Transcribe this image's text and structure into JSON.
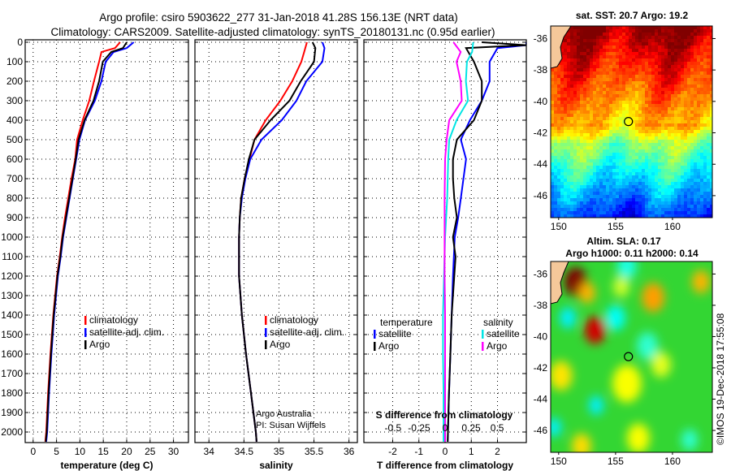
{
  "title": {
    "line1": "Argo profile: csiro 5903622_277 31-Jan-2018 41.28S 156.13E (NRT data)",
    "line2": "Climatology: CARS2009. Satellite-adjusted climatology: synTS_20180131.nc (0.95d earlier)"
  },
  "colors": {
    "climatology": "#ff0000",
    "satellite": "#0000ff",
    "argo": "#000000",
    "s_satellite": "#00e5e5",
    "s_argo": "#ff00ff"
  },
  "credit": {
    "line1": "Argo Australia",
    "line2": "PI: Susan Wijffels"
  },
  "timestamp": "©IMOS 19-Dec-2018 17:55:08",
  "chart_data": [
    {
      "type": "line",
      "name": "temperature",
      "xlabel": "temperature (deg C)",
      "ylabel": "depth",
      "xlim": [
        -1.7,
        33.2
      ],
      "ylim": [
        2096,
        -12
      ],
      "xticks": [
        "0",
        "5",
        "10",
        "15",
        "20",
        "25",
        "30"
      ],
      "yticks": [
        "0",
        "100",
        "200",
        "300",
        "400",
        "500",
        "600",
        "700",
        "800",
        "900",
        "1000",
        "1100",
        "1200",
        "1300",
        "1400",
        "1500",
        "1600",
        "1700",
        "1800",
        "1900",
        "2000"
      ],
      "grid": true,
      "legend": [
        "climatology",
        "satellite-adj. clim.",
        "Argo"
      ],
      "series": [
        {
          "name": "climatology",
          "color": "#ff0000",
          "depth": [
            0,
            30,
            50,
            100,
            200,
            300,
            400,
            500,
            600,
            700,
            800,
            900,
            1000,
            1100,
            1200,
            1400,
            1600,
            1800,
            2000,
            2050
          ],
          "values": [
            18.6,
            17.5,
            14.6,
            14.1,
            13.0,
            12.0,
            10.6,
            9.4,
            9.0,
            8.2,
            7.5,
            6.8,
            6.2,
            5.7,
            5.1,
            4.3,
            3.7,
            3.2,
            2.8,
            2.6
          ]
        },
        {
          "name": "satellite-adj. clim.",
          "color": "#0000ff",
          "depth": [
            0,
            30,
            50,
            100,
            200,
            300,
            400,
            500,
            600,
            700,
            800,
            900,
            1000,
            1100,
            1200,
            1400,
            1600,
            1800,
            2000,
            2050
          ],
          "values": [
            21.5,
            20.0,
            17.2,
            15.5,
            14.6,
            13.2,
            11.1,
            9.9,
            9.2,
            8.5,
            7.8,
            7.1,
            6.4,
            5.9,
            5.3,
            4.5,
            3.9,
            3.4,
            3.0,
            2.8
          ]
        },
        {
          "name": "Argo",
          "color": "#000000",
          "depth": [
            0,
            30,
            50,
            100,
            200,
            300,
            400,
            500,
            600,
            700,
            800,
            900,
            1000,
            1100,
            1200,
            1400,
            1600,
            1800,
            2000,
            2050
          ],
          "values": [
            20.0,
            19.2,
            16.7,
            14.9,
            14.1,
            12.9,
            11.0,
            9.7,
            9.1,
            8.4,
            7.7,
            7.0,
            6.3,
            5.8,
            5.2,
            4.4,
            3.8,
            3.3,
            2.9,
            2.7
          ]
        }
      ]
    },
    {
      "type": "line",
      "name": "salinity",
      "xlabel": "salinity",
      "xlim": [
        33.8,
        36.12
      ],
      "ylim": [
        2096,
        -12
      ],
      "xticks": [
        "34",
        "34.5",
        "35",
        "35.5",
        "36"
      ],
      "grid": true,
      "legend": [
        "climatology",
        "satellite-adj. clim.",
        "Argo"
      ],
      "series": [
        {
          "name": "climatology",
          "color": "#ff0000",
          "depth": [
            0,
            50,
            100,
            200,
            300,
            400,
            500,
            600,
            700,
            800,
            900,
            1000,
            1200,
            1400,
            1600,
            1800,
            2000,
            2050
          ],
          "values": [
            35.4,
            35.36,
            35.32,
            35.19,
            35.02,
            34.81,
            34.65,
            34.58,
            34.51,
            34.46,
            34.44,
            34.43,
            34.43,
            34.47,
            34.53,
            34.6,
            34.67,
            34.68
          ]
        },
        {
          "name": "satellite-adj. clim.",
          "color": "#0000ff",
          "depth": [
            0,
            30,
            100,
            200,
            300,
            400,
            500,
            600,
            700,
            800,
            900,
            1000,
            1200,
            1400,
            1600,
            1800,
            2000,
            2050
          ],
          "values": [
            35.62,
            35.65,
            35.62,
            35.39,
            35.25,
            35.04,
            34.75,
            34.59,
            34.52,
            34.47,
            34.44,
            34.43,
            34.43,
            34.47,
            34.53,
            34.6,
            34.67,
            34.68
          ]
        },
        {
          "name": "Argo",
          "color": "#000000",
          "depth": [
            0,
            30,
            100,
            200,
            300,
            400,
            500,
            600,
            700,
            800,
            900,
            1000,
            1200,
            1400,
            1600,
            1800,
            2000,
            2050
          ],
          "values": [
            35.48,
            35.52,
            35.5,
            35.31,
            35.15,
            34.88,
            34.65,
            34.57,
            34.51,
            34.46,
            34.44,
            34.43,
            34.43,
            34.47,
            34.53,
            34.6,
            34.67,
            34.68
          ]
        }
      ]
    },
    {
      "type": "line",
      "name": "difference-from-climatology",
      "xlabel": "T difference from climatology",
      "x2label": "S difference from climatology",
      "xlim": [
        -3.1,
        3.1
      ],
      "x2lim": [
        -0.78,
        0.78
      ],
      "ylim": [
        2096,
        -12
      ],
      "xticks": [
        "-2",
        "-1",
        "0",
        "1",
        "2"
      ],
      "x2ticks": [
        "-0.5",
        "-0.25",
        "0",
        "0.25",
        "0.5"
      ],
      "grid": true,
      "legend_temperature": {
        "title": "temperature",
        "items": [
          "satellite",
          "Argo"
        ]
      },
      "legend_salinity": {
        "title": "salinity",
        "items": [
          "satellite",
          "Argo"
        ]
      },
      "series": [
        {
          "name": "T satellite",
          "axis": "T",
          "color": "#0000ff",
          "depth": [
            0,
            15,
            30,
            100,
            200,
            300,
            400,
            500,
            600,
            700,
            800,
            900,
            1000,
            1200,
            1400,
            1600,
            1800,
            2050
          ],
          "values": [
            3.1,
            3.1,
            2.0,
            1.7,
            1.7,
            1.4,
            0.95,
            0.6,
            0.8,
            0.7,
            0.6,
            0.5,
            0.37,
            0.3,
            0.25,
            0.2,
            0.15,
            0.1
          ]
        },
        {
          "name": "T Argo",
          "axis": "T",
          "color": "#000000",
          "depth": [
            0,
            15,
            30,
            100,
            200,
            300,
            400,
            500,
            600,
            700,
            800,
            900,
            1000,
            1100,
            1200,
            1400,
            1600,
            1800,
            2050
          ],
          "values": [
            1.4,
            3.1,
            0.8,
            1.1,
            1.4,
            1.4,
            1.1,
            0.45,
            0.3,
            0.3,
            0.35,
            0.45,
            0.3,
            0.4,
            0.35,
            0.25,
            0.2,
            0.15,
            0.1
          ]
        },
        {
          "name": "S satellite",
          "axis": "S",
          "color": "#00e5e5",
          "depth": [
            0,
            50,
            100,
            200,
            300,
            400,
            500,
            600,
            800,
            1000,
            1200,
            1400,
            1600,
            1800,
            2050
          ],
          "values": [
            0.27,
            0.26,
            0.21,
            0.2,
            0.22,
            0.11,
            0.04,
            0.03,
            0.02,
            0.0,
            -0.01,
            -0.02,
            -0.02,
            -0.015,
            -0.015
          ]
        },
        {
          "name": "S Argo",
          "axis": "S",
          "color": "#ff00ff",
          "depth": [
            0,
            50,
            100,
            200,
            300,
            400,
            500,
            600,
            800,
            1000,
            1200,
            1400,
            1600,
            1800,
            2050
          ],
          "values": [
            0.08,
            0.15,
            0.11,
            0.15,
            0.16,
            0.04,
            0.015,
            0.0,
            -0.005,
            -0.005,
            -0.005,
            0.0,
            0.0,
            0.0,
            0.0
          ]
        }
      ]
    },
    {
      "type": "heatmap",
      "name": "sst-map",
      "title": "sat. SST: 20.7 Argo: 19.2",
      "xlim": [
        149.3,
        163.5
      ],
      "ylim": [
        -47.4,
        -35.2
      ],
      "xticks": [
        "150",
        "155",
        "160"
      ],
      "yticks": [
        "-36",
        "-38",
        "-40",
        "-42",
        "-44",
        "-46"
      ],
      "marker": {
        "lon": 156.13,
        "lat": -41.28
      }
    },
    {
      "type": "heatmap",
      "name": "sla-map",
      "title1": "Altim. SLA: 0.17",
      "title2": "Argo h1000: 0.11 h2000: 0.14",
      "xlim": [
        149.3,
        163.5
      ],
      "ylim": [
        -47.4,
        -35.2
      ],
      "xticks": [
        "150",
        "155",
        "160"
      ],
      "yticks": [
        "-36",
        "-38",
        "-40",
        "-42",
        "-44",
        "-46"
      ],
      "marker": {
        "lon": 156.13,
        "lat": -41.28
      }
    }
  ]
}
